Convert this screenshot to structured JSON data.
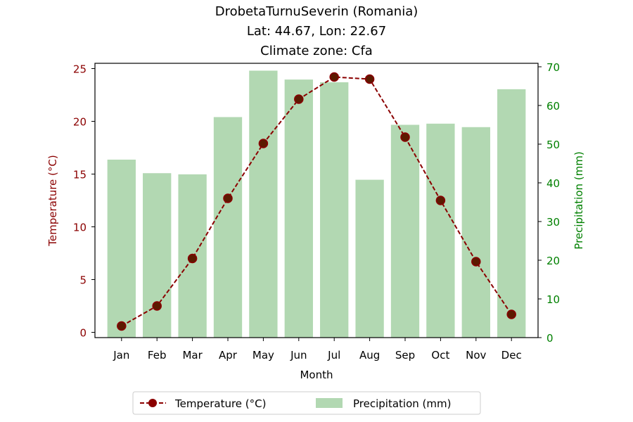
{
  "chart_data": {
    "type": "bar+line",
    "title_lines": [
      "DrobetaTurnuSeverin (Romania)",
      "Lat: 44.67, Lon: 22.67",
      "Climate zone: Cfa"
    ],
    "xlabel": "Month",
    "ylabel_left": "Temperature (°C)",
    "ylabel_right": "Precipitation (mm)",
    "categories": [
      "Jan",
      "Feb",
      "Mar",
      "Apr",
      "May",
      "Jun",
      "Jul",
      "Aug",
      "Sep",
      "Oct",
      "Nov",
      "Dec"
    ],
    "temperature": {
      "name": "Temperature (°C)",
      "values": [
        0.6,
        2.5,
        7.0,
        12.7,
        17.9,
        22.1,
        24.2,
        24.0,
        18.5,
        12.5,
        6.7,
        1.7
      ],
      "ylim": [
        -0.5,
        25.5
      ],
      "ticks": [
        0,
        5,
        10,
        15,
        20,
        25
      ]
    },
    "precipitation": {
      "name": "Precipitation (mm)",
      "values": [
        46,
        42.5,
        42.2,
        57,
        69,
        66.7,
        66,
        40.8,
        55,
        55.3,
        54.4,
        64.2
      ],
      "ylim": [
        0,
        70.9
      ],
      "ticks": [
        0,
        10,
        20,
        30,
        40,
        50,
        60,
        70
      ]
    },
    "legend_position": "bottom-center",
    "colors": {
      "temperature_line": "#8b0000",
      "temperature_marker_edge": "#8b0000",
      "temperature_marker_fill": "#5c1a00",
      "precipitation_bar": "#b2d8b2",
      "left_axis": "#8b0000",
      "right_axis": "#008000",
      "text": "#000000"
    }
  }
}
